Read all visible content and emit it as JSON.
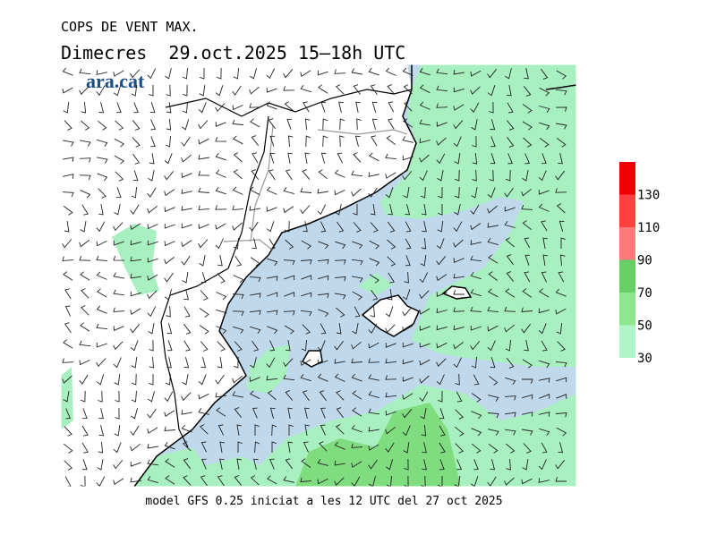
{
  "header": {
    "title": "COPS DE VENT MAX.",
    "subtitle": "Dimecres  29.oct.2025 15—18h UTC",
    "logo": "ara.cat"
  },
  "footer": "model GFS 0.25 iniciat a les 12 UTC del 27 oct 2025",
  "colorbar": {
    "lim": [
      30,
      150
    ],
    "ticks": [
      30,
      50,
      70,
      90,
      110,
      130
    ],
    "colors": [
      "#b0f5c8",
      "#8ee68e",
      "#66cf66",
      "#ff7a7a",
      "#ff4040",
      "#f00000"
    ]
  }
}
